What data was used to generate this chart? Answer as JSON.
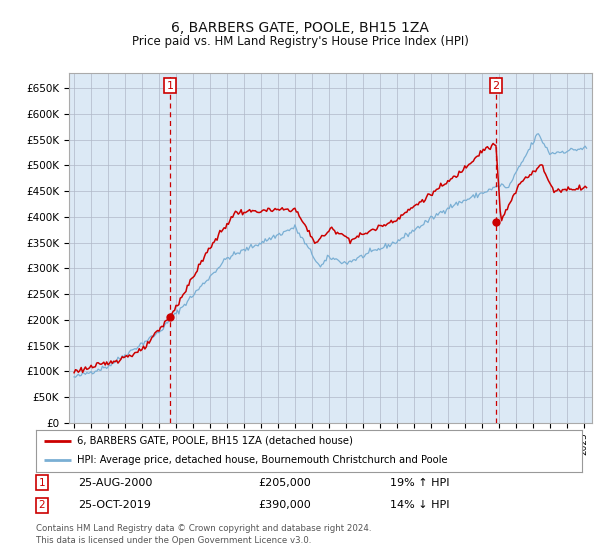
{
  "title": "6, BARBERS GATE, POOLE, BH15 1ZA",
  "subtitle": "Price paid vs. HM Land Registry's House Price Index (HPI)",
  "background_color": "#dce9f5",
  "grid_color": "#b0b8c8",
  "red_line_color": "#cc0000",
  "blue_line_color": "#7aafd4",
  "ylim": [
    0,
    680000
  ],
  "yticks": [
    0,
    50000,
    100000,
    150000,
    200000,
    250000,
    300000,
    350000,
    400000,
    450000,
    500000,
    550000,
    600000,
    650000
  ],
  "ytick_labels": [
    "£0",
    "£50K",
    "£100K",
    "£150K",
    "£200K",
    "£250K",
    "£300K",
    "£350K",
    "£400K",
    "£450K",
    "£500K",
    "£550K",
    "£600K",
    "£650K"
  ],
  "t1": 2000.646,
  "p1": 205000,
  "t2": 2019.831,
  "p2": 390000,
  "legend_line1": "6, BARBERS GATE, POOLE, BH15 1ZA (detached house)",
  "legend_line2": "HPI: Average price, detached house, Bournemouth Christchurch and Poole",
  "row1_date": "25-AUG-2000",
  "row1_price": "£205,000",
  "row1_pct": "19% ↑ HPI",
  "row2_date": "25-OCT-2019",
  "row2_price": "£390,000",
  "row2_pct": "14% ↓ HPI",
  "footer1": "Contains HM Land Registry data © Crown copyright and database right 2024.",
  "footer2": "This data is licensed under the Open Government Licence v3.0."
}
